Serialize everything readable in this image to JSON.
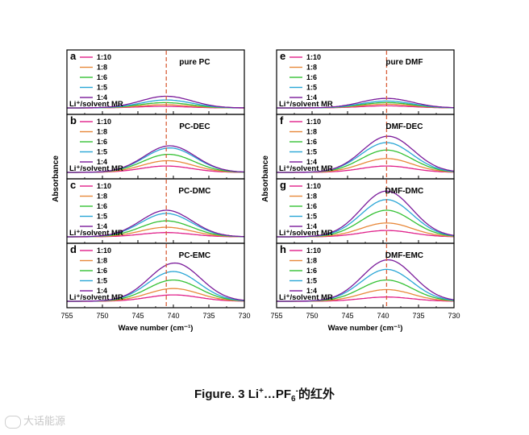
{
  "figure": {
    "caption": {
      "prefix": "Figure. 3 Li",
      "sup1": "+",
      "mid": "…PF",
      "sub": "6",
      "sup2": "-",
      "suffix": "的红外"
    },
    "watermark": "大话能源"
  },
  "colors": {
    "1:10": "#e0208a",
    "1:8": "#e8883a",
    "1:6": "#34c134",
    "1:5": "#2aa6d6",
    "1:4": "#7a1a9a",
    "refline": "#d9603a"
  },
  "chart_data": [
    {
      "type": "line",
      "panel": "a",
      "title": "pure PC",
      "legend_title": "Li⁺/solvent MR",
      "legend_position": "top-left",
      "xlabel": "Wave number (cm⁻¹)",
      "ylabel": "Absorbance",
      "xlim": [
        755,
        730
      ],
      "x_ticks": [
        755,
        750,
        745,
        740,
        735,
        730
      ],
      "reference_line_x": 741,
      "series": [
        {
          "name": "1:10",
          "peak_x": 741.5,
          "peak_height": 0.03
        },
        {
          "name": "1:8",
          "peak_x": 741.3,
          "peak_height": 0.06
        },
        {
          "name": "1:6",
          "peak_x": 741.2,
          "peak_height": 0.1
        },
        {
          "name": "1:5",
          "peak_x": 741.0,
          "peak_height": 0.15
        },
        {
          "name": "1:4",
          "peak_x": 741.0,
          "peak_height": 0.22
        }
      ]
    },
    {
      "type": "line",
      "panel": "b",
      "title": "PC-DEC",
      "legend_title": "Li⁺/solvent MR",
      "legend_position": "top-left",
      "xlabel": "Wave number (cm⁻¹)",
      "ylabel": "Absorbance",
      "xlim": [
        755,
        730
      ],
      "x_ticks": [
        755,
        750,
        745,
        740,
        735,
        730
      ],
      "reference_line_x": 741,
      "series": [
        {
          "name": "1:10",
          "peak_x": 741.0,
          "peak_height": 0.12
        },
        {
          "name": "1:8",
          "peak_x": 740.8,
          "peak_height": 0.22
        },
        {
          "name": "1:6",
          "peak_x": 740.7,
          "peak_height": 0.34
        },
        {
          "name": "1:5",
          "peak_x": 740.5,
          "peak_height": 0.46
        },
        {
          "name": "1:4",
          "peak_x": 740.5,
          "peak_height": 0.5
        }
      ]
    },
    {
      "type": "line",
      "panel": "c",
      "title": "PC-DMC",
      "legend_title": "Li⁺/solvent MR",
      "legend_position": "top-left",
      "xlabel": "Wave number (cm⁻¹)",
      "ylabel": "Absorbance",
      "xlim": [
        755,
        730
      ],
      "x_ticks": [
        755,
        750,
        745,
        740,
        735,
        730
      ],
      "reference_line_x": 741,
      "series": [
        {
          "name": "1:10",
          "peak_x": 741.0,
          "peak_height": 0.08
        },
        {
          "name": "1:8",
          "peak_x": 741.0,
          "peak_height": 0.18
        },
        {
          "name": "1:6",
          "peak_x": 741.0,
          "peak_height": 0.3
        },
        {
          "name": "1:5",
          "peak_x": 741.0,
          "peak_height": 0.44
        },
        {
          "name": "1:4",
          "peak_x": 741.0,
          "peak_height": 0.5
        }
      ]
    },
    {
      "type": "line",
      "panel": "d",
      "title": "PC-EMC",
      "legend_title": "Li⁺/solvent MR",
      "legend_position": "top-left",
      "xlabel": "Wave number (cm⁻¹)",
      "ylabel": "Absorbance",
      "xlim": [
        755,
        730
      ],
      "x_ticks": [
        755,
        750,
        745,
        740,
        735,
        730
      ],
      "reference_line_x": 741,
      "series": [
        {
          "name": "1:10",
          "peak_x": 740.0,
          "peak_height": 0.12
        },
        {
          "name": "1:8",
          "peak_x": 740.0,
          "peak_height": 0.24
        },
        {
          "name": "1:6",
          "peak_x": 740.0,
          "peak_height": 0.4
        },
        {
          "name": "1:5",
          "peak_x": 740.0,
          "peak_height": 0.56
        },
        {
          "name": "1:4",
          "peak_x": 739.8,
          "peak_height": 0.72
        }
      ]
    },
    {
      "type": "line",
      "panel": "e",
      "title": "pure DMF",
      "legend_title": "Li⁺/solvent MR",
      "legend_position": "top-left",
      "xlabel": "Wave number (cm⁻¹)",
      "ylabel": "",
      "xlim": [
        755,
        730
      ],
      "x_ticks": [
        755,
        750,
        745,
        740,
        735,
        730
      ],
      "reference_line_x": 739.5,
      "series": [
        {
          "name": "1:10",
          "peak_x": 739.5,
          "peak_height": 0.04
        },
        {
          "name": "1:8",
          "peak_x": 739.5,
          "peak_height": 0.07
        },
        {
          "name": "1:6",
          "peak_x": 739.5,
          "peak_height": 0.1
        },
        {
          "name": "1:5",
          "peak_x": 739.5,
          "peak_height": 0.13
        },
        {
          "name": "1:4",
          "peak_x": 739.5,
          "peak_height": 0.18
        }
      ]
    },
    {
      "type": "line",
      "panel": "f",
      "title": "DMF-DEC",
      "legend_title": "Li⁺/solvent MR",
      "legend_position": "top-left",
      "xlabel": "Wave number (cm⁻¹)",
      "ylabel": "",
      "xlim": [
        755,
        730
      ],
      "x_ticks": [
        755,
        750,
        745,
        740,
        735,
        730
      ],
      "reference_line_x": 739.5,
      "series": [
        {
          "name": "1:10",
          "peak_x": 739.5,
          "peak_height": 0.12
        },
        {
          "name": "1:8",
          "peak_x": 739.5,
          "peak_height": 0.26
        },
        {
          "name": "1:6",
          "peak_x": 739.5,
          "peak_height": 0.42
        },
        {
          "name": "1:5",
          "peak_x": 739.5,
          "peak_height": 0.56
        },
        {
          "name": "1:4",
          "peak_x": 739.3,
          "peak_height": 0.68
        }
      ]
    },
    {
      "type": "line",
      "panel": "g",
      "title": "DMF-DMC",
      "legend_title": "Li⁺/solvent MR",
      "legend_position": "top-left",
      "xlabel": "Wave number (cm⁻¹)",
      "ylabel": "",
      "xlim": [
        755,
        730
      ],
      "x_ticks": [
        755,
        750,
        745,
        740,
        735,
        730
      ],
      "reference_line_x": 739.5,
      "series": [
        {
          "name": "1:10",
          "peak_x": 739.5,
          "peak_height": 0.12
        },
        {
          "name": "1:8",
          "peak_x": 739.5,
          "peak_height": 0.26
        },
        {
          "name": "1:6",
          "peak_x": 739.5,
          "peak_height": 0.5
        },
        {
          "name": "1:5",
          "peak_x": 739.5,
          "peak_height": 0.7
        },
        {
          "name": "1:4",
          "peak_x": 739.5,
          "peak_height": 0.86
        }
      ]
    },
    {
      "type": "line",
      "panel": "h",
      "title": "DMF-EMC",
      "legend_title": "Li⁺/solvent MR",
      "legend_position": "top-left",
      "xlabel": "Wave number (cm⁻¹)",
      "ylabel": "",
      "xlim": [
        755,
        730
      ],
      "x_ticks": [
        755,
        750,
        745,
        740,
        735,
        730
      ],
      "reference_line_x": 739.5,
      "series": [
        {
          "name": "1:10",
          "peak_x": 739.5,
          "peak_height": 0.08
        },
        {
          "name": "1:8",
          "peak_x": 739.5,
          "peak_height": 0.22
        },
        {
          "name": "1:6",
          "peak_x": 739.5,
          "peak_height": 0.4
        },
        {
          "name": "1:5",
          "peak_x": 739.5,
          "peak_height": 0.6
        },
        {
          "name": "1:4",
          "peak_x": 739.3,
          "peak_height": 0.78
        }
      ]
    }
  ]
}
